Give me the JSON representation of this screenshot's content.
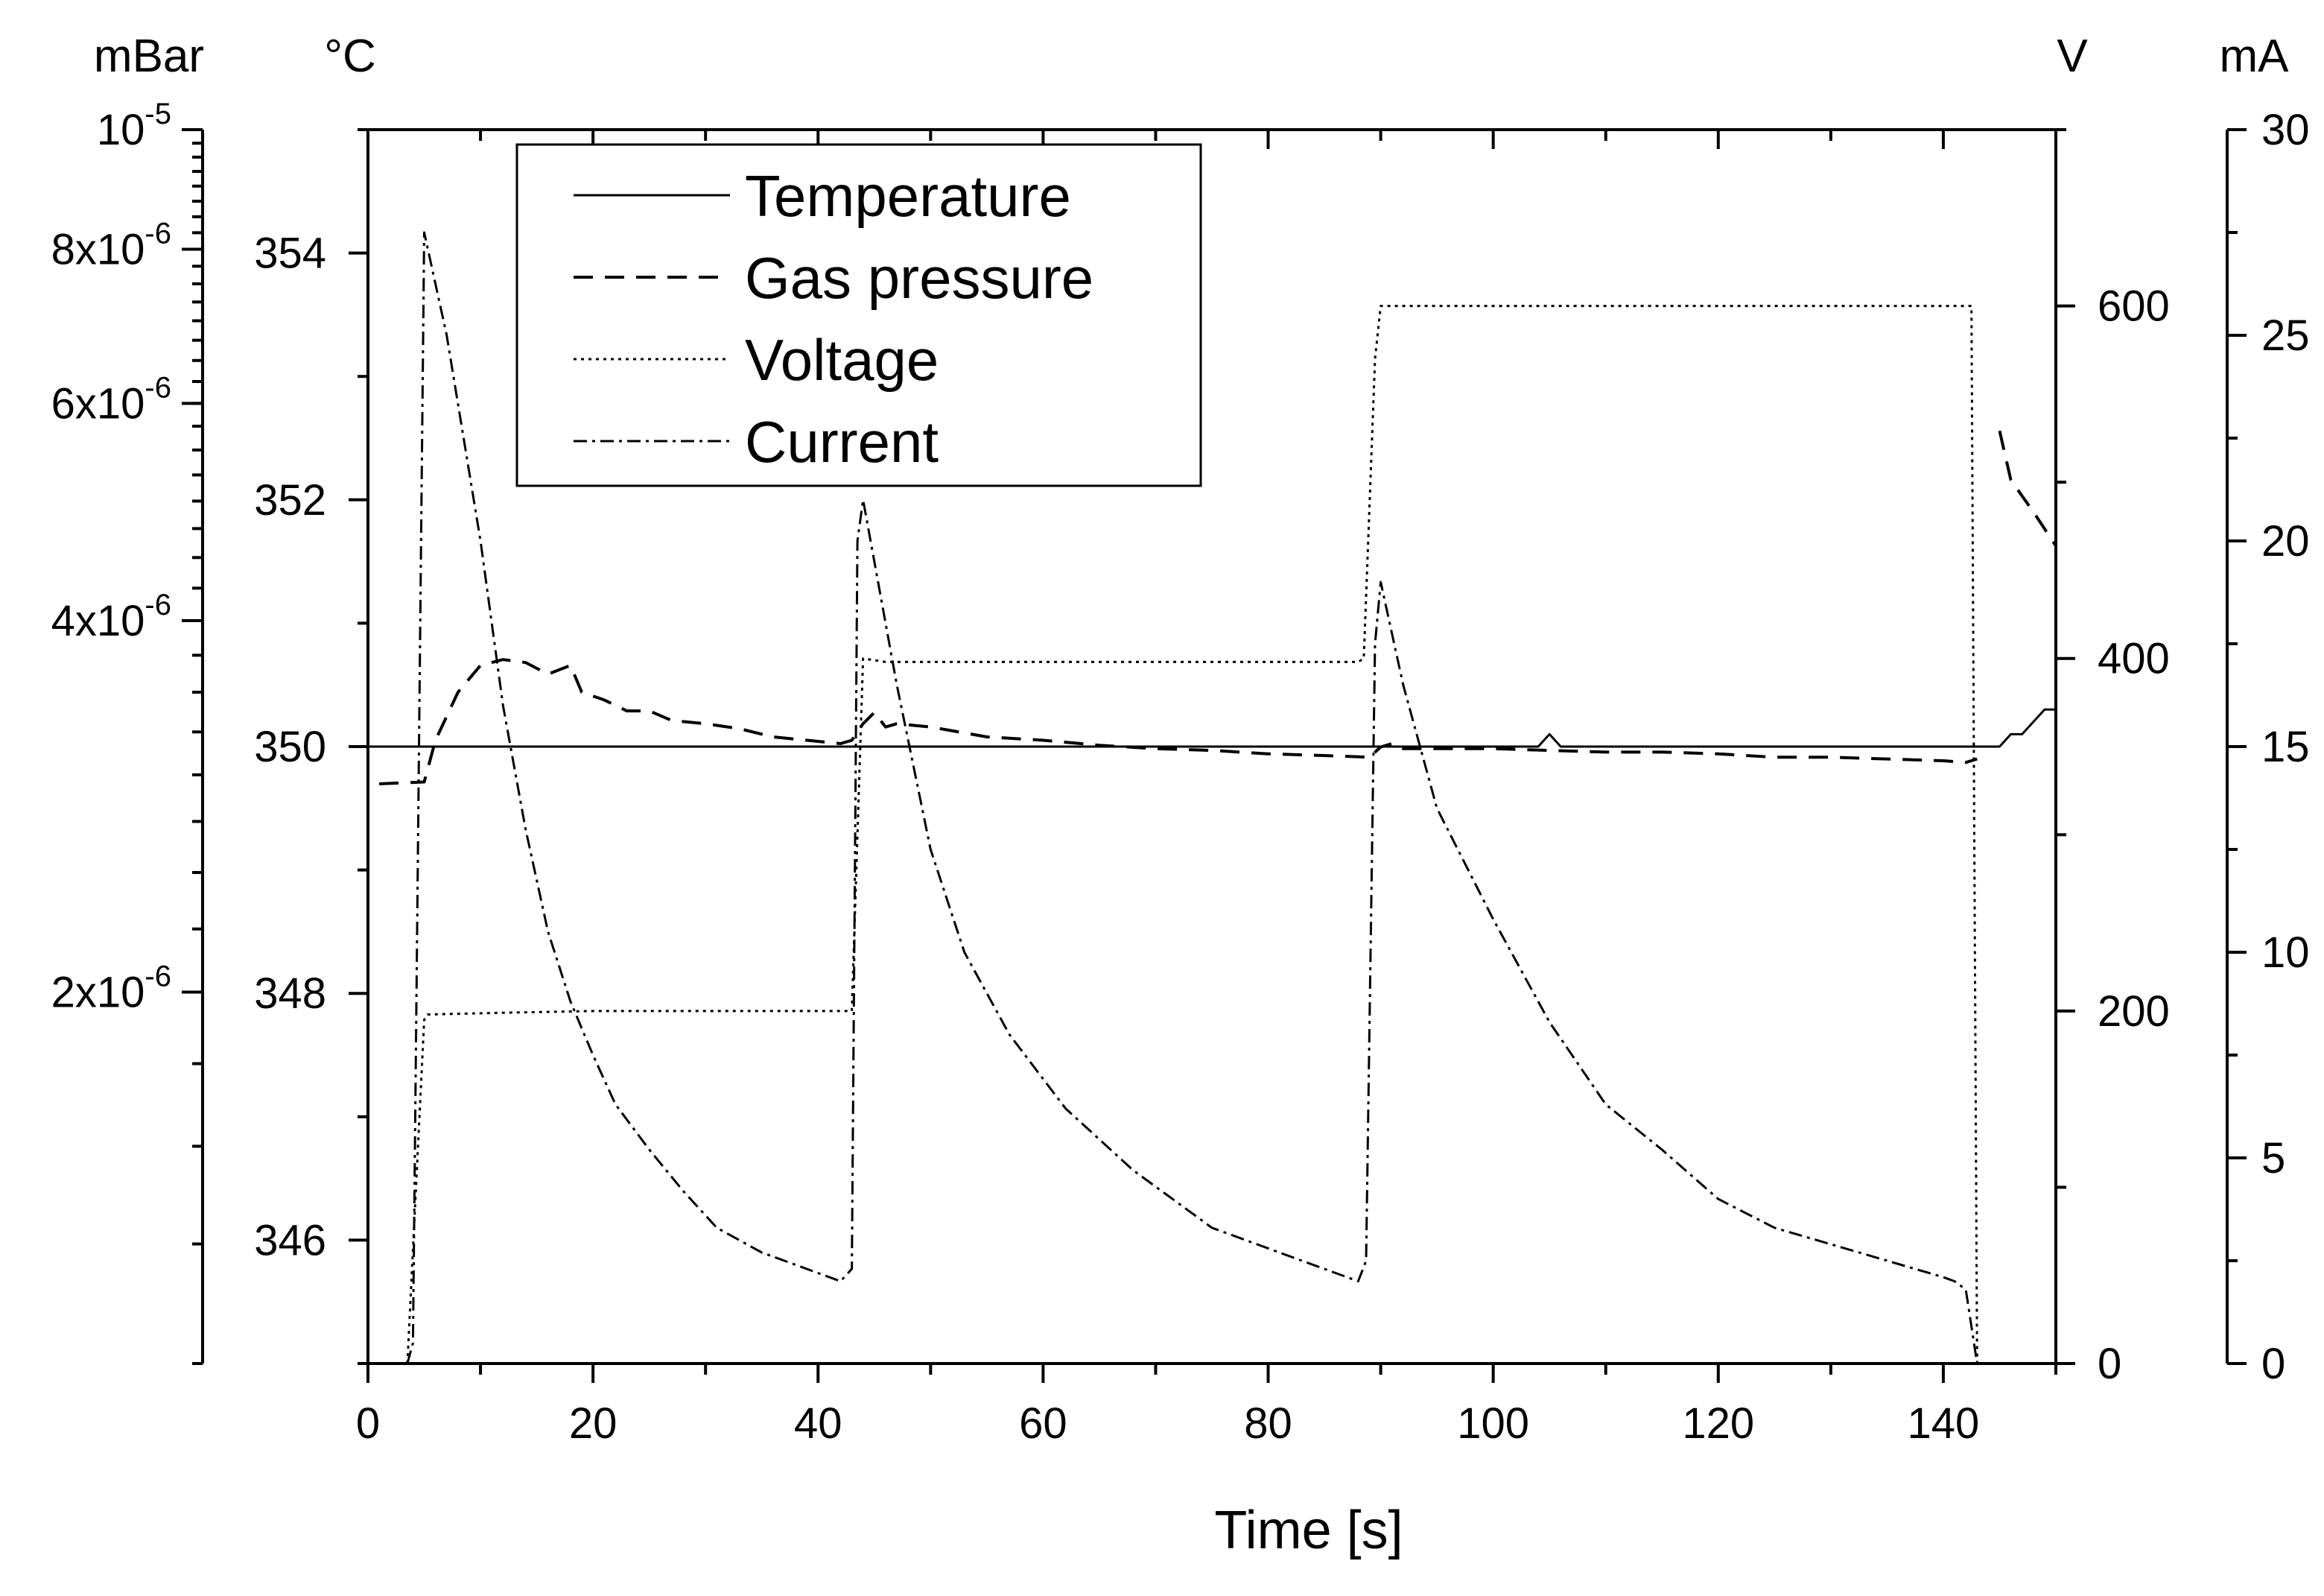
{
  "chart_data": {
    "type": "line",
    "xlabel": "Time [s]",
    "xlim": [
      0,
      150
    ],
    "x_ticks": [
      0,
      20,
      40,
      60,
      80,
      100,
      120,
      140
    ],
    "axes": {
      "pressure": {
        "unit": "mBar",
        "scale": "log",
        "lim": [
          1e-06,
          1e-05
        ],
        "ticks": [
          {
            "value": 2e-06,
            "mant": "2x10",
            "exp": "-6"
          },
          {
            "value": 4e-06,
            "mant": "4x10",
            "exp": "-6"
          },
          {
            "value": 6e-06,
            "mant": "6x10",
            "exp": "-6"
          },
          {
            "value": 8e-06,
            "mant": "8x10",
            "exp": "-6"
          },
          {
            "value": 1e-05,
            "mant": "10",
            "exp": "-5"
          }
        ]
      },
      "temperature": {
        "unit": "°C",
        "lim": [
          345,
          355
        ],
        "ticks": [
          346,
          348,
          350,
          352,
          354
        ]
      },
      "voltage": {
        "unit": "V",
        "lim": [
          0,
          700
        ],
        "ticks": [
          0,
          200,
          400,
          600
        ]
      },
      "current": {
        "unit": "mA",
        "lim": [
          0,
          30
        ],
        "ticks": [
          0,
          5,
          10,
          15,
          20,
          25,
          30
        ]
      }
    },
    "legend": [
      "Temperature",
      "Gas pressure",
      "Voltage",
      "Current"
    ],
    "series": [
      {
        "name": "Temperature",
        "axis": "temperature",
        "style": "solid",
        "points": [
          [
            0,
            350
          ],
          [
            104,
            350
          ],
          [
            105,
            350.1
          ],
          [
            106,
            350
          ],
          [
            145,
            350
          ],
          [
            146,
            350.1
          ],
          [
            147,
            350.1
          ],
          [
            149,
            350.3
          ],
          [
            150,
            350.3
          ]
        ]
      },
      {
        "name": "Gas pressure",
        "axis": "pressure",
        "style": "dashed",
        "segments": [
          [
            [
              1,
              2.95e-06
            ],
            [
              5,
              2.96e-06
            ],
            [
              6,
              3.2e-06
            ],
            [
              8,
              3.5e-06
            ],
            [
              10,
              3.68e-06
            ],
            [
              12,
              3.72e-06
            ],
            [
              14,
              3.7e-06
            ],
            [
              16,
              3.62e-06
            ],
            [
              18,
              3.68e-06
            ],
            [
              19,
              3.5e-06
            ],
            [
              21,
              3.45e-06
            ],
            [
              23,
              3.38e-06
            ],
            [
              25,
              3.38e-06
            ],
            [
              27,
              3.32e-06
            ],
            [
              30,
              3.3e-06
            ],
            [
              33,
              3.27e-06
            ],
            [
              36,
              3.22e-06
            ],
            [
              39,
              3.2e-06
            ],
            [
              42,
              3.18e-06
            ],
            [
              43,
              3.2e-06
            ],
            [
              44,
              3.3e-06
            ],
            [
              45,
              3.37e-06
            ],
            [
              46,
              3.28e-06
            ],
            [
              47,
              3.3e-06
            ],
            [
              50,
              3.28e-06
            ],
            [
              55,
              3.22e-06
            ],
            [
              60,
              3.2e-06
            ],
            [
              65,
              3.17e-06
            ],
            [
              70,
              3.15e-06
            ],
            [
              75,
              3.14e-06
            ],
            [
              80,
              3.12e-06
            ],
            [
              85,
              3.11e-06
            ],
            [
              89,
              3.1e-06
            ],
            [
              90,
              3.16e-06
            ],
            [
              91,
              3.18e-06
            ],
            [
              92,
              3.15e-06
            ],
            [
              95,
              3.15e-06
            ],
            [
              100,
              3.15e-06
            ],
            [
              105,
              3.14e-06
            ],
            [
              110,
              3.13e-06
            ],
            [
              115,
              3.13e-06
            ],
            [
              120,
              3.12e-06
            ],
            [
              125,
              3.1e-06
            ],
            [
              130,
              3.1e-06
            ],
            [
              135,
              3.09e-06
            ],
            [
              140,
              3.08e-06
            ],
            [
              142,
              3.07e-06
            ],
            [
              143,
              3.09e-06
            ]
          ],
          [
            [
              145,
              5.7e-06
            ],
            [
              146,
              5.2e-06
            ],
            [
              148,
              4.9e-06
            ],
            [
              150,
              4.6e-06
            ]
          ]
        ]
      },
      {
        "name": "Voltage",
        "axis": "voltage",
        "style": "dotted",
        "points": [
          [
            3.5,
            0
          ],
          [
            5,
            195
          ],
          [
            5.3,
            198
          ],
          [
            12,
            199
          ],
          [
            20,
            200
          ],
          [
            43,
            200
          ],
          [
            44,
            400
          ],
          [
            46,
            398
          ],
          [
            88,
            398
          ],
          [
            88.5,
            400
          ],
          [
            89.5,
            570
          ],
          [
            90,
            600
          ],
          [
            142.5,
            600
          ],
          [
            143,
            0
          ]
        ]
      },
      {
        "name": "Current",
        "axis": "current",
        "style": "dashdot",
        "points": [
          [
            3.5,
            0
          ],
          [
            4,
            0.5
          ],
          [
            5,
            27.5
          ],
          [
            7,
            25
          ],
          [
            10,
            20
          ],
          [
            12,
            16
          ],
          [
            14,
            13
          ],
          [
            16,
            10.5
          ],
          [
            18,
            8.8
          ],
          [
            20,
            7.5
          ],
          [
            22,
            6.3
          ],
          [
            25,
            5.2
          ],
          [
            28,
            4.2
          ],
          [
            31,
            3.3
          ],
          [
            35,
            2.7
          ],
          [
            38,
            2.4
          ],
          [
            40,
            2.2
          ],
          [
            42,
            2
          ],
          [
            43,
            2.3
          ],
          [
            43.5,
            20
          ],
          [
            44,
            21
          ],
          [
            45,
            19.5
          ],
          [
            47,
            16.5
          ],
          [
            50,
            12.5
          ],
          [
            53,
            10
          ],
          [
            57,
            8
          ],
          [
            62,
            6.2
          ],
          [
            68,
            4.7
          ],
          [
            75,
            3.3
          ],
          [
            82,
            2.6
          ],
          [
            88,
            2
          ],
          [
            88.7,
            2.5
          ],
          [
            89.5,
            17.5
          ],
          [
            90,
            19
          ],
          [
            92,
            16.5
          ],
          [
            95,
            13.5
          ],
          [
            100,
            10.8
          ],
          [
            105,
            8.3
          ],
          [
            110,
            6.3
          ],
          [
            115,
            5.2
          ],
          [
            120,
            4
          ],
          [
            125,
            3.3
          ],
          [
            130,
            2.9
          ],
          [
            135,
            2.5
          ],
          [
            140,
            2.1
          ],
          [
            141,
            2
          ],
          [
            142,
            1.8
          ],
          [
            143,
            0
          ]
        ]
      }
    ]
  }
}
